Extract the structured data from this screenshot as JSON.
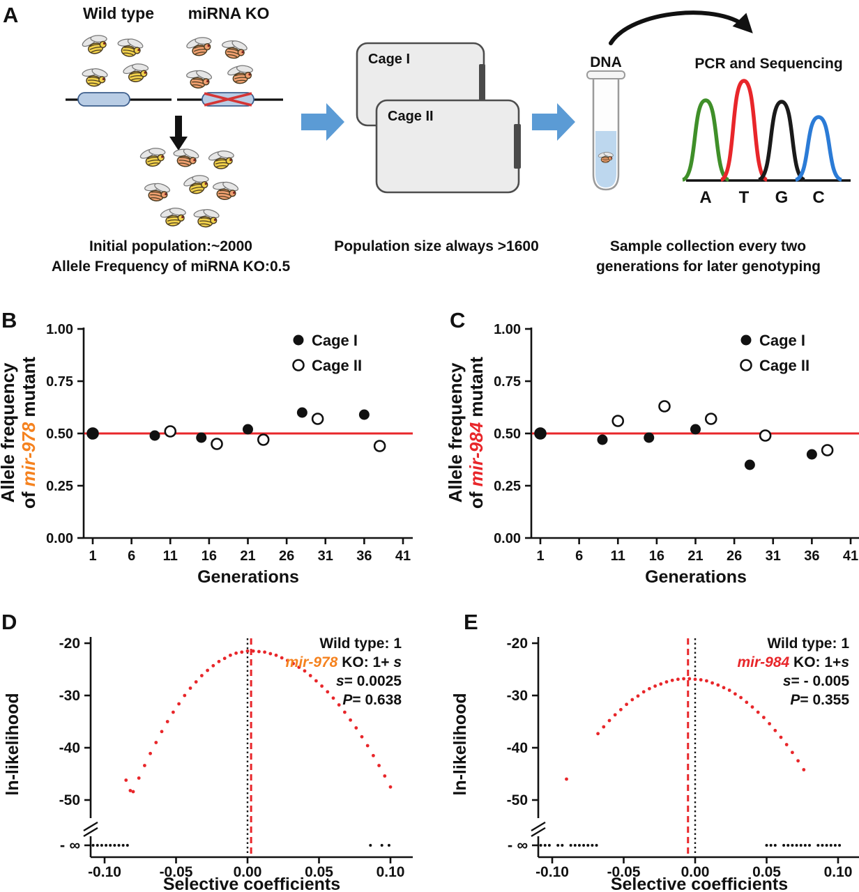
{
  "labels": {
    "a": "A",
    "b": "B",
    "c": "C",
    "d": "D",
    "e": "E"
  },
  "panel_a": {
    "wild_type_label": "Wild type",
    "mirna_ko_label": "miRNA KO",
    "caption_population": "Initial population:~2000",
    "caption_allele": "Allele Frequency of miRNA KO:0.5",
    "cage1_label": "Cage I",
    "cage2_label": "Cage II",
    "caption_cages": "Population size always >1600",
    "dna_label": "DNA",
    "pcr_label": "PCR and Sequencing",
    "bases": [
      {
        "letter": "A",
        "color": "#3f8f29"
      },
      {
        "letter": "T",
        "color": "#e8262a"
      },
      {
        "letter": "G",
        "color": "#1a1a1a"
      },
      {
        "letter": "C",
        "color": "#2b7bd6"
      }
    ],
    "caption_sampling_line1": "Sample collection every two",
    "caption_sampling_line2": "generations for later genotyping",
    "colors": {
      "arrow_blue": "#5b9bd5",
      "fly_yellow": "#f2d24b",
      "fly_orange": "#f0a070",
      "gene_capsule": "#b9cde5",
      "ko_cross": "#d43535",
      "tube_liquid": "#bdd7ee"
    }
  },
  "chart_data": [
    {
      "panel": "B",
      "type": "scatter",
      "xlabel": "Generations",
      "ylabel_line1": "Allele frequency",
      "ylabel_prefix": "of ",
      "gene": "mir-978",
      "ylabel_suffix": " mutant",
      "gene_color": "#f5821f",
      "x_ticks": [
        1,
        6,
        11,
        16,
        21,
        26,
        31,
        36,
        41
      ],
      "y_ticks": [
        0,
        0.25,
        0.5,
        0.75,
        1
      ],
      "xlim": [
        1,
        41
      ],
      "ylim": [
        0,
        1
      ],
      "ref_line": {
        "y": 0.5,
        "color": "#e8262a"
      },
      "legend": [
        {
          "label": "Cage I",
          "marker": "filled"
        },
        {
          "label": "Cage II",
          "marker": "open"
        }
      ],
      "series": [
        {
          "name": "Cage I",
          "marker": "filled",
          "points": [
            [
              1,
              0.5
            ],
            [
              9,
              0.49
            ],
            [
              15,
              0.48
            ],
            [
              21,
              0.52
            ],
            [
              28,
              0.6
            ],
            [
              36,
              0.59
            ]
          ]
        },
        {
          "name": "Cage II",
          "marker": "open",
          "points": [
            [
              1,
              0.5
            ],
            [
              11,
              0.51
            ],
            [
              17,
              0.45
            ],
            [
              23,
              0.47
            ],
            [
              30,
              0.57
            ],
            [
              38,
              0.44
            ]
          ]
        }
      ]
    },
    {
      "panel": "C",
      "type": "scatter",
      "xlabel": "Generations",
      "ylabel_line1": "Allele frequency",
      "ylabel_prefix": "of ",
      "gene": "mir-984",
      "ylabel_suffix": " mutant",
      "gene_color": "#e8262a",
      "x_ticks": [
        1,
        6,
        11,
        16,
        21,
        26,
        31,
        36,
        41
      ],
      "y_ticks": [
        0,
        0.25,
        0.5,
        0.75,
        1
      ],
      "xlim": [
        1,
        41
      ],
      "ylim": [
        0,
        1
      ],
      "ref_line": {
        "y": 0.5,
        "color": "#e8262a"
      },
      "legend": [
        {
          "label": "Cage I",
          "marker": "filled"
        },
        {
          "label": "Cage II",
          "marker": "open"
        }
      ],
      "series": [
        {
          "name": "Cage I",
          "marker": "filled",
          "points": [
            [
              1,
              0.5
            ],
            [
              9,
              0.47
            ],
            [
              15,
              0.48
            ],
            [
              21,
              0.52
            ],
            [
              28,
              0.35
            ],
            [
              36,
              0.4
            ]
          ]
        },
        {
          "name": "Cage II",
          "marker": "open",
          "points": [
            [
              1,
              0.5
            ],
            [
              11,
              0.56
            ],
            [
              17,
              0.63
            ],
            [
              23,
              0.57
            ],
            [
              30,
              0.49
            ],
            [
              38,
              0.42
            ]
          ]
        }
      ]
    },
    {
      "panel": "D",
      "type": "scatter",
      "xlabel": "Selective coefficients",
      "ylabel": "ln-likelihood",
      "x_ticks": [
        -0.1,
        -0.05,
        0,
        0.05,
        0.1
      ],
      "y_ticks": [
        -20,
        -30,
        -40,
        -50
      ],
      "neg_inf_label": "- ∞",
      "xlim": [
        -0.115,
        0.115
      ],
      "ylim": [
        -50,
        -20
      ],
      "y_break": true,
      "curve_color": "#e8262a",
      "vlines": [
        {
          "x": 0,
          "style": "dotted",
          "color": "#111111"
        },
        {
          "x": 0.0025,
          "style": "dashed",
          "color": "#e8262a"
        }
      ],
      "annotation": {
        "wild_type": "Wild type: 1",
        "gene": "mir-978",
        "gene_color": "#f5821f",
        "ko_text": " KO: 1+ ",
        "ko_s": "s",
        "s_label": "s",
        "s_value": "= 0.0025",
        "p_label": "P",
        "p_value": "= 0.638"
      },
      "curve": [
        [
          -0.08,
          -48.4
        ],
        [
          -0.076,
          -45.8
        ],
        [
          -0.072,
          -43.4
        ],
        [
          -0.068,
          -41.1
        ],
        [
          -0.064,
          -39.0
        ],
        [
          -0.06,
          -36.9
        ],
        [
          -0.056,
          -35.0
        ],
        [
          -0.052,
          -33.2
        ],
        [
          -0.048,
          -31.6
        ],
        [
          -0.044,
          -30.0
        ],
        [
          -0.04,
          -28.6
        ],
        [
          -0.036,
          -27.4
        ],
        [
          -0.032,
          -26.2
        ],
        [
          -0.028,
          -25.2
        ],
        [
          -0.024,
          -24.3
        ],
        [
          -0.02,
          -23.5
        ],
        [
          -0.016,
          -22.9
        ],
        [
          -0.012,
          -22.3
        ],
        [
          -0.008,
          -21.9
        ],
        [
          -0.004,
          -21.7
        ],
        [
          0.0,
          -21.5
        ],
        [
          0.004,
          -21.5
        ],
        [
          0.008,
          -21.6
        ],
        [
          0.012,
          -21.7
        ],
        [
          0.016,
          -22.0
        ],
        [
          0.02,
          -22.3
        ],
        [
          0.024,
          -22.8
        ],
        [
          0.028,
          -23.3
        ],
        [
          0.032,
          -23.9
        ],
        [
          0.036,
          -24.6
        ],
        [
          0.04,
          -25.3
        ],
        [
          0.044,
          -26.2
        ],
        [
          0.048,
          -27.2
        ],
        [
          0.052,
          -28.2
        ],
        [
          0.056,
          -29.3
        ],
        [
          0.06,
          -30.5
        ],
        [
          0.064,
          -31.8
        ],
        [
          0.068,
          -33.2
        ],
        [
          0.072,
          -34.7
        ],
        [
          0.076,
          -36.2
        ],
        [
          0.08,
          -37.9
        ],
        [
          0.084,
          -39.6
        ],
        [
          0.088,
          -41.5
        ],
        [
          0.092,
          -43.4
        ],
        [
          0.096,
          -45.4
        ],
        [
          0.1,
          -47.5
        ]
      ],
      "outliers": [
        [
          -0.085,
          -46.2
        ],
        [
          -0.082,
          -48.2
        ]
      ],
      "floor_points": [
        -0.108,
        -0.105,
        -0.102,
        -0.099,
        -0.096,
        -0.093,
        -0.09,
        -0.087,
        -0.084,
        0.086,
        0.094,
        0.099
      ]
    },
    {
      "panel": "E",
      "type": "scatter",
      "xlabel": "Selective coefficients",
      "ylabel": "ln-likelihood",
      "x_ticks": [
        -0.1,
        -0.05,
        0,
        0.05,
        0.1
      ],
      "y_ticks": [
        -20,
        -30,
        -40,
        -50
      ],
      "neg_inf_label": "- ∞",
      "xlim": [
        -0.115,
        0.115
      ],
      "ylim": [
        -50,
        -20
      ],
      "y_break": true,
      "curve_color": "#e8262a",
      "vlines": [
        {
          "x": 0,
          "style": "dotted",
          "color": "#111111"
        },
        {
          "x": -0.005,
          "style": "dashed",
          "color": "#e8262a"
        }
      ],
      "annotation": {
        "wild_type": "Wild type: 1",
        "gene": "mir-984",
        "gene_color": "#e8262a",
        "ko_text": " KO: 1+",
        "ko_s": "s",
        "s_label": "s",
        "s_value": "= - 0.005",
        "p_label": "P",
        "p_value": "= 0.355"
      },
      "curve": [
        [
          -0.068,
          -37.3
        ],
        [
          -0.064,
          -36.0
        ],
        [
          -0.06,
          -34.8
        ],
        [
          -0.056,
          -33.7
        ],
        [
          -0.052,
          -32.7
        ],
        [
          -0.048,
          -31.7
        ],
        [
          -0.044,
          -30.8
        ],
        [
          -0.04,
          -30.1
        ],
        [
          -0.036,
          -29.3
        ],
        [
          -0.032,
          -28.7
        ],
        [
          -0.028,
          -28.2
        ],
        [
          -0.024,
          -27.8
        ],
        [
          -0.02,
          -27.4
        ],
        [
          -0.016,
          -27.1
        ],
        [
          -0.012,
          -26.9
        ],
        [
          -0.008,
          -26.8
        ],
        [
          -0.004,
          -26.8
        ],
        [
          0.0,
          -26.9
        ],
        [
          0.004,
          -27.0
        ],
        [
          0.008,
          -27.2
        ],
        [
          0.012,
          -27.6
        ],
        [
          0.016,
          -28.0
        ],
        [
          0.02,
          -28.5
        ],
        [
          0.024,
          -29.0
        ],
        [
          0.028,
          -29.7
        ],
        [
          0.032,
          -30.4
        ],
        [
          0.036,
          -31.3
        ],
        [
          0.04,
          -32.2
        ],
        [
          0.044,
          -33.2
        ],
        [
          0.048,
          -34.2
        ],
        [
          0.052,
          -35.4
        ],
        [
          0.056,
          -36.7
        ],
        [
          0.06,
          -38.0
        ],
        [
          0.064,
          -39.4
        ],
        [
          0.068,
          -40.9
        ],
        [
          0.072,
          -42.5
        ],
        [
          0.076,
          -44.2
        ]
      ],
      "outliers": [
        [
          -0.09,
          -46.0
        ]
      ],
      "floor_points": [
        -0.108,
        -0.105,
        -0.102,
        -0.096,
        -0.093,
        -0.087,
        -0.084,
        -0.081,
        -0.078,
        -0.075,
        -0.072,
        -0.069,
        0.05,
        0.053,
        0.056,
        0.062,
        0.065,
        0.068,
        0.071,
        0.074,
        0.077,
        0.08,
        0.086,
        0.089,
        0.092,
        0.095,
        0.098,
        0.101
      ]
    }
  ]
}
